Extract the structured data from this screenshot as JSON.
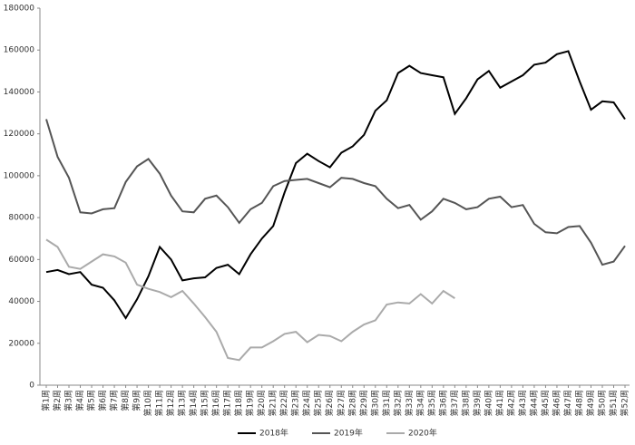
{
  "chart_data": {
    "type": "line",
    "categories": [
      "第1周",
      "第2周",
      "第3周",
      "第4周",
      "第5周",
      "第6周",
      "第7周",
      "第8周",
      "第9周",
      "第10周",
      "第11周",
      "第12周",
      "第13周",
      "第14周",
      "第15周",
      "第16周",
      "第17周",
      "第18周",
      "第19周",
      "第20周",
      "第21周",
      "第22周",
      "第23周",
      "第24周",
      "第25周",
      "第26周",
      "第27周",
      "第28周",
      "第29周",
      "第30周",
      "第31周",
      "第32周",
      "第33周",
      "第34周",
      "第35周",
      "第36周",
      "第37周",
      "第38周",
      "第39周",
      "第40周",
      "第41周",
      "第42周",
      "第43周",
      "第44周",
      "第45周",
      "第46周",
      "第47周",
      "第48周",
      "第49周",
      "第50周",
      "第51周",
      "第52周"
    ],
    "series": [
      {
        "name": "2018年",
        "color": "#000000",
        "values": [
          54000,
          55000,
          53000,
          54000,
          48000,
          46500,
          40500,
          32000,
          41000,
          52000,
          66000,
          60000,
          50000,
          51000,
          51500,
          56000,
          57500,
          53000,
          62500,
          70000,
          76000,
          92000,
          106000,
          110500,
          107000,
          104000,
          111000,
          114000,
          119500,
          131000,
          136000,
          149000,
          152500,
          149000,
          148000,
          147000,
          129500,
          137000,
          146000,
          150000,
          142000,
          145000,
          148000,
          153000,
          154000,
          158000,
          159500,
          145000,
          131500,
          135500,
          135000,
          127000
        ]
      },
      {
        "name": "2019年",
        "color": "#555555",
        "values": [
          127000,
          109000,
          99000,
          82500,
          82000,
          84000,
          84500,
          97000,
          104500,
          108000,
          101000,
          90500,
          83000,
          82500,
          89000,
          90500,
          85000,
          77500,
          84000,
          87000,
          95000,
          97500,
          98000,
          98500,
          96500,
          94500,
          99000,
          98500,
          96500,
          95000,
          89000,
          84500,
          86000,
          79000,
          83000,
          89000,
          87000,
          84000,
          85000,
          89000,
          90000,
          85000,
          86000,
          77000,
          73000,
          72500,
          75500,
          76000,
          68000,
          57500,
          59000,
          66500
        ]
      },
      {
        "name": "2020年",
        "color": "#aaaaaa",
        "values": [
          69500,
          66000,
          56500,
          55500,
          59000,
          62500,
          61500,
          58500,
          48000,
          46000,
          44500,
          42000,
          45000,
          39000,
          32500,
          25500,
          13000,
          12000,
          18000,
          18000,
          21000,
          24500,
          25500,
          20500,
          24000,
          23500,
          21000,
          25500,
          29000,
          31000,
          38500,
          39500,
          39000,
          43500,
          39000,
          45000,
          41500,
          null,
          null,
          null,
          null,
          null,
          null,
          null,
          null,
          null,
          null,
          null,
          null,
          null,
          null,
          null
        ]
      }
    ],
    "ylim": [
      0,
      180000
    ],
    "yticks": [
      0,
      20000,
      40000,
      60000,
      80000,
      100000,
      120000,
      140000,
      160000,
      180000
    ],
    "legend": "bottom"
  }
}
